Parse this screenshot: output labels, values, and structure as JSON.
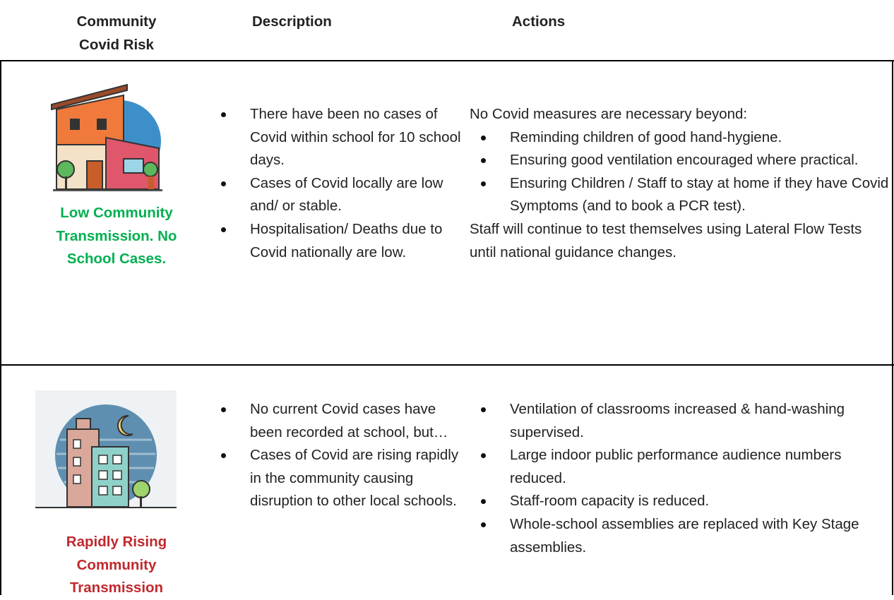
{
  "table": {
    "headers": [
      "Community Covid Risk",
      "Description",
      "Actions"
    ],
    "rows": [
      {
        "risk": "Low Community Transmission. No School Cases.",
        "description": [
          "There have been no cases of Covid within school for 10 school days.",
          "Cases of Covid locally are low and/ or stable.",
          "Hospitalisation/ Deaths due to Covid nationally are low."
        ],
        "actions": {
          "intro": "No Covid measures are necessary beyond:",
          "items": [
            "Reminding children of good hand-hygiene.",
            "Ensuring good ventilation encouraged where practical.",
            "Ensuring Children / Staff to stay at home if they have Covid Symptoms (and to book a PCR test)."
          ],
          "outro": "Staff will continue to test themselves using Lateral Flow Tests until national guidance changes."
        }
      },
      {
        "risk": "Rapidly Rising Community Transmission",
        "description": [
          "No current Covid cases have been recorded at school, but…",
          "Cases of Covid are rising rapidly in the community causing disruption to other local schools."
        ],
        "actions": {
          "items": [
            "Ventilation of classrooms increased & hand-washing supervised.",
            "Large indoor public performance audience numbers reduced.",
            "Staff-room capacity is reduced.",
            "Whole-school assemblies are replaced with Key Stage assemblies."
          ]
        }
      }
    ]
  }
}
